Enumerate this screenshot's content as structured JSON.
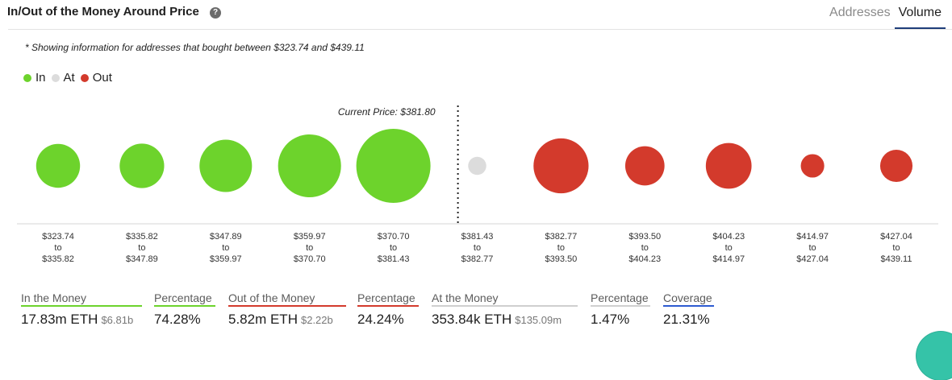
{
  "header": {
    "title": "In/Out of the Money Around Price",
    "help_icon": "question-circle-icon",
    "tabs": [
      {
        "label": "Addresses",
        "active": false
      },
      {
        "label": "Volume",
        "active": true
      }
    ]
  },
  "note": "* Showing information for addresses that bought between $323.74 and $439.11",
  "legend": [
    {
      "label": "In",
      "color": "#6dd32c"
    },
    {
      "label": "At",
      "color": "#dcdcdc"
    },
    {
      "label": "Out",
      "color": "#d33a2c"
    }
  ],
  "chart_data": {
    "type": "bubble",
    "current_price_label": "Current Price: $381.80",
    "current_price": 381.8,
    "ranges": [
      {
        "from": "$323.74",
        "to_word": "to",
        "to": "$335.82",
        "status": "in",
        "size": 0.35
      },
      {
        "from": "$335.82",
        "to_word": "to",
        "to": "$347.89",
        "status": "in",
        "size": 0.36
      },
      {
        "from": "$347.89",
        "to_word": "to",
        "to": "$359.97",
        "status": "in",
        "size": 0.5
      },
      {
        "from": "$359.97",
        "to_word": "to",
        "to": "$370.70",
        "status": "in",
        "size": 0.72
      },
      {
        "from": "$370.70",
        "to_word": "to",
        "to": "$381.43",
        "status": "in",
        "size": 1.0
      },
      {
        "from": "$381.43",
        "to_word": "to",
        "to": "$382.77",
        "status": "at",
        "size": 0.06
      },
      {
        "from": "$382.77",
        "to_word": "to",
        "to": "$393.50",
        "status": "out",
        "size": 0.55
      },
      {
        "from": "$393.50",
        "to_word": "to",
        "to": "$404.23",
        "status": "out",
        "size": 0.28
      },
      {
        "from": "$404.23",
        "to_word": "to",
        "to": "$414.97",
        "status": "out",
        "size": 0.38
      },
      {
        "from": "$414.97",
        "to_word": "to",
        "to": "$427.04",
        "status": "out",
        "size": 0.1
      },
      {
        "from": "$427.04",
        "to_word": "to",
        "to": "$439.11",
        "status": "out",
        "size": 0.19
      }
    ]
  },
  "summary": [
    {
      "label": "In the Money",
      "value": "17.83m ETH",
      "sub": "$6.81b",
      "color": "#6dd32c"
    },
    {
      "label": "Percentage",
      "value": "74.28%",
      "sub": "",
      "color": "#6dd32c"
    },
    {
      "label": "Out of the Money",
      "value": "5.82m ETH",
      "sub": "$2.22b",
      "color": "#d33a2c"
    },
    {
      "label": "Percentage",
      "value": "24.24%",
      "sub": "",
      "color": "#d33a2c"
    },
    {
      "label": "At the Money",
      "value": "353.84k ETH",
      "sub": "$135.09m",
      "color": "#cfcfcf"
    },
    {
      "label": "Percentage",
      "value": "1.47%",
      "sub": "",
      "color": "#cfcfcf"
    },
    {
      "label": "Coverage",
      "value": "21.31%",
      "sub": "",
      "color": "#2d5bd1"
    }
  ]
}
